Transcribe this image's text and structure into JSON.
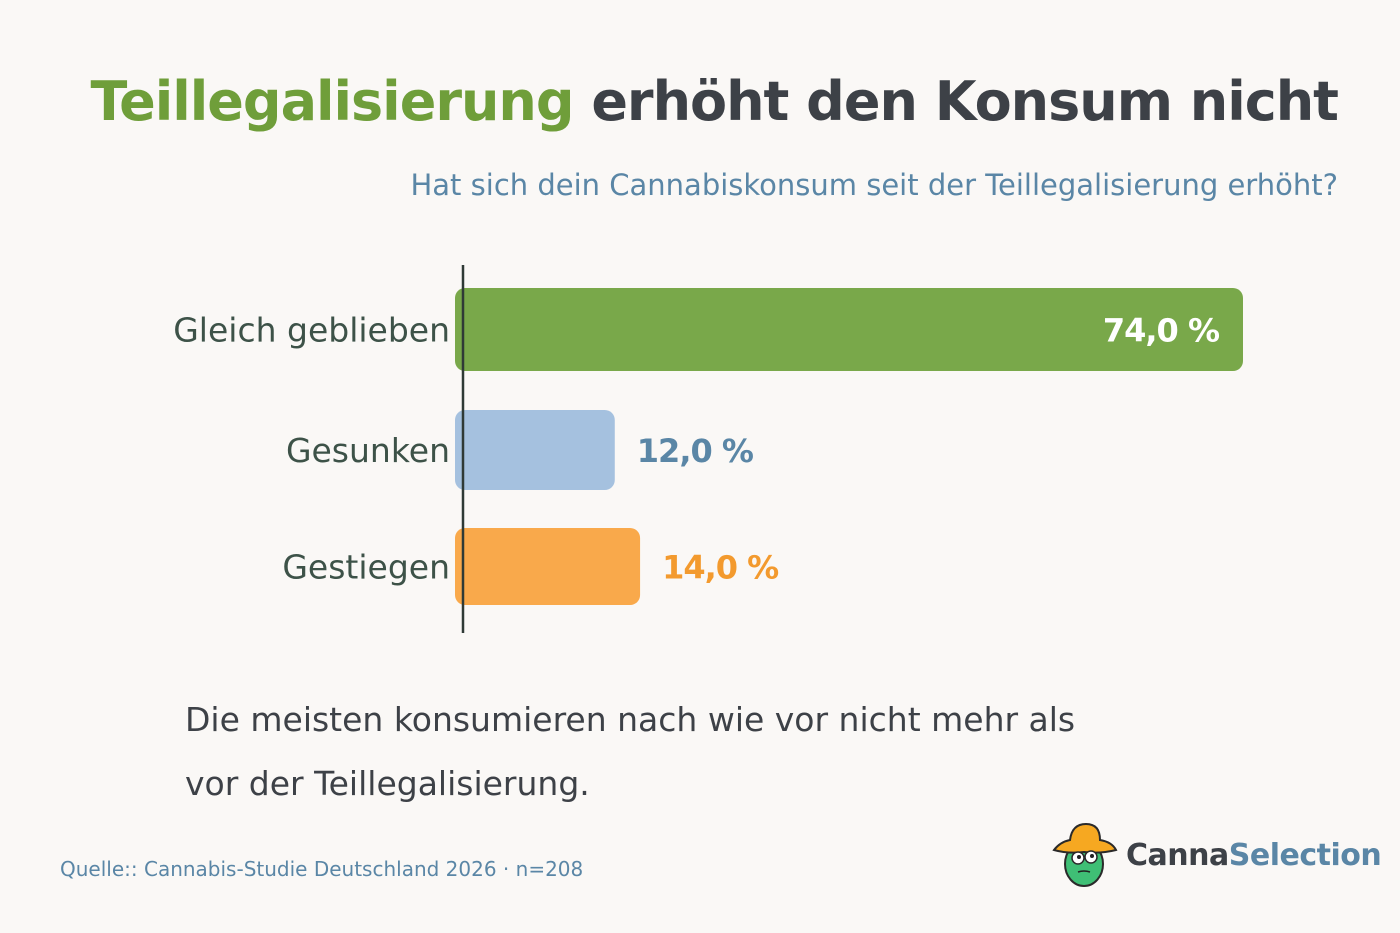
{
  "title": {
    "highlight": "Teillegalisierung",
    "rest": "erhöht den Konsum nicht"
  },
  "subtitle": "Hat sich dein Cannabiskonsum seit der Teillegalisierung erhöht?",
  "caption": {
    "line1": "Die meisten konsumieren nach wie vor nicht mehr als",
    "line2": "vor der Teillegalisierung."
  },
  "source": "Quelle:: Cannabis-Studie Deutschland 2026 · n=208",
  "logo": {
    "part1": "Canna",
    "part2": "Selection"
  },
  "colors": {
    "green": "#79a84a",
    "blue": "#a5c1df",
    "orange": "#f9a94b",
    "title_green": "#6f9e3a",
    "text_blue": "#5a86a6"
  },
  "chart_data": {
    "type": "bar",
    "orientation": "horizontal",
    "categories": [
      "Gleich geblieben",
      "Gesunken",
      "Gestiegen"
    ],
    "values": [
      74.0,
      12.0,
      14.0
    ],
    "labels": [
      "74,0 %",
      "12,0 %",
      "14,0 %"
    ],
    "bar_colors": [
      "#79a84a",
      "#a5c1df",
      "#f9a94b"
    ],
    "label_colors": [
      "#ffffff",
      "#5a86a6",
      "#f39a2e"
    ],
    "unit": "%",
    "grid": false,
    "xlim": [
      0,
      74
    ]
  }
}
